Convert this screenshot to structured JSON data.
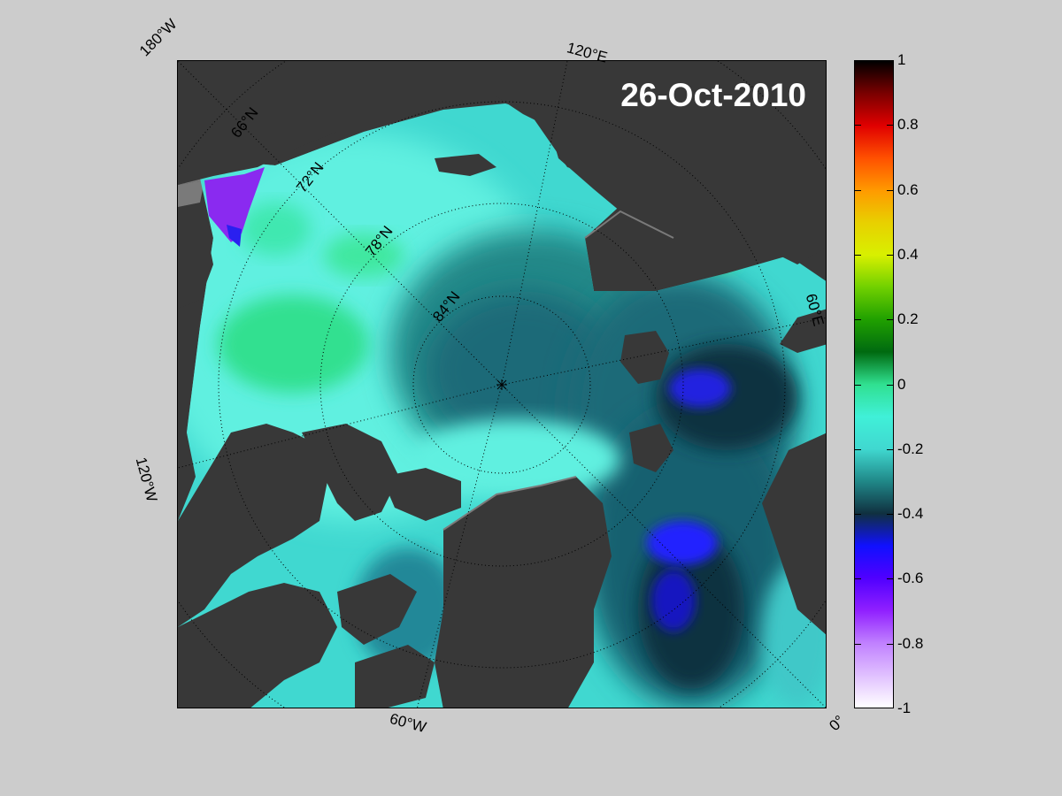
{
  "map": {
    "date": "26-Oct-2010",
    "projection": "north-polar-stereographic",
    "lon_labels": [
      "180°W",
      "120°E",
      "60°E",
      "0°",
      "60°W",
      "120°W"
    ],
    "lat_labels": [
      "66°N",
      "72°N",
      "78°N",
      "84°N"
    ],
    "colors": {
      "land": "#383838",
      "land_coast": "#7a7a7a",
      "background": "#cccccc",
      "grid": "#000000"
    }
  },
  "colorbar": {
    "range": [
      -1,
      1
    ],
    "ticks": [
      "1",
      "0.8",
      "0.6",
      "0.4",
      "0.2",
      "0",
      "-0.2",
      "-0.4",
      "-0.6",
      "-0.8",
      "-1"
    ],
    "stops": [
      {
        "v": 1.0,
        "color": "#000000"
      },
      {
        "v": 0.9,
        "color": "#7a0000"
      },
      {
        "v": 0.8,
        "color": "#e00000"
      },
      {
        "v": 0.7,
        "color": "#ff5000"
      },
      {
        "v": 0.6,
        "color": "#ff9a00"
      },
      {
        "v": 0.5,
        "color": "#e8d000"
      },
      {
        "v": 0.4,
        "color": "#d8f000"
      },
      {
        "v": 0.3,
        "color": "#70d000"
      },
      {
        "v": 0.2,
        "color": "#20a000"
      },
      {
        "v": 0.1,
        "color": "#006a10"
      },
      {
        "v": 0.0,
        "color": "#30e090"
      },
      {
        "v": -0.1,
        "color": "#40f0d8"
      },
      {
        "v": -0.2,
        "color": "#40d8d0"
      },
      {
        "v": -0.3,
        "color": "#208888"
      },
      {
        "v": -0.4,
        "color": "#103040"
      },
      {
        "v": -0.5,
        "color": "#1010ff"
      },
      {
        "v": -0.6,
        "color": "#5000ff"
      },
      {
        "v": -0.7,
        "color": "#9020ff"
      },
      {
        "v": -0.8,
        "color": "#c080ff"
      },
      {
        "v": -0.9,
        "color": "#e0c0ff"
      },
      {
        "v": -1.0,
        "color": "#ffffff"
      }
    ]
  }
}
